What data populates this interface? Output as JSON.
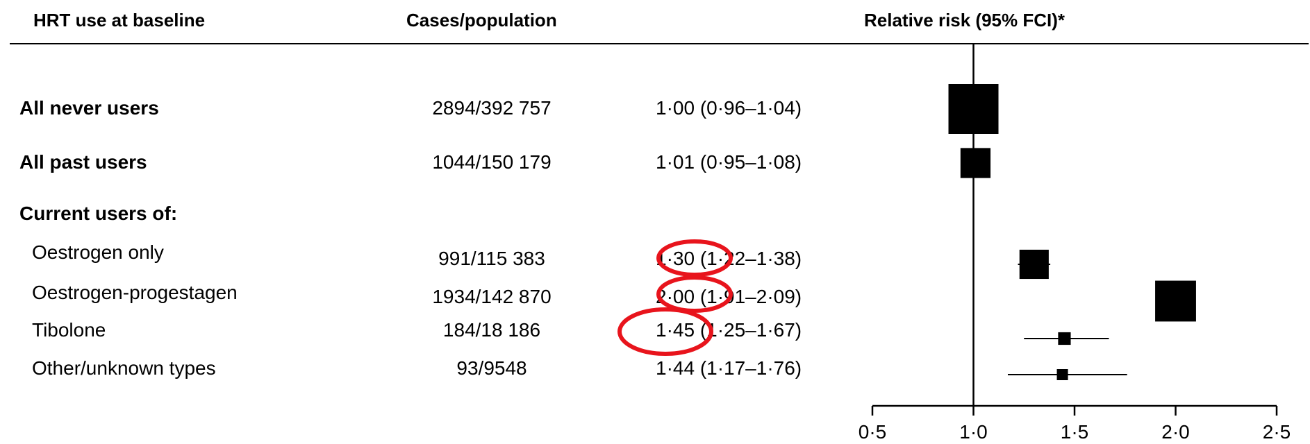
{
  "header": {
    "col1": "HRT use at baseline",
    "col2": "Cases/population",
    "col3": "Relative risk (95% FCI)*"
  },
  "rows": [
    {
      "label": "All never users",
      "bold": true,
      "cases": "2894/392 757",
      "rr_text": "1·00 (0·96–1·04)"
    },
    {
      "label": "All past users",
      "bold": true,
      "cases": "1044/150 179",
      "rr_text": "1·01 (0·95–1·08)"
    },
    {
      "label": "Current users of:",
      "bold": true,
      "cases": "",
      "rr_text": ""
    },
    {
      "label": "Oestrogen only",
      "bold": false,
      "cases": "991/115 383",
      "rr_text": "1·30 (1·22–1·38)"
    },
    {
      "label": "Oestrogen-progestagen",
      "bold": false,
      "cases": "1934/142 870",
      "rr_text": "2·00 (1·91–2·09)"
    },
    {
      "label": "Tibolone",
      "bold": false,
      "cases": "184/18 186",
      "rr_text": "1·45 (1·25–1·67)"
    },
    {
      "label": "Other/unknown types",
      "bold": false,
      "cases": "93/9548",
      "rr_text": "1·44 (1·17–1·76)"
    }
  ],
  "chart_data": {
    "type": "scatter",
    "xlim": [
      0.5,
      2.5
    ],
    "xticks": [
      0.5,
      1.0,
      1.5,
      2.0,
      2.5
    ],
    "xtick_labels": [
      "0·5",
      "1·0",
      "1·5",
      "2·0",
      "2·5"
    ],
    "reference_line": 1.0,
    "points": [
      {
        "name": "All never users",
        "rr": 1.0,
        "lo": 0.96,
        "hi": 1.04,
        "weight": 2894
      },
      {
        "name": "All past users",
        "rr": 1.01,
        "lo": 0.95,
        "hi": 1.08,
        "weight": 1044
      },
      {
        "name": "Oestrogen only",
        "rr": 1.3,
        "lo": 1.22,
        "hi": 1.38,
        "weight": 991
      },
      {
        "name": "Oestrogen-progestagen",
        "rr": 2.0,
        "lo": 1.91,
        "hi": 2.09,
        "weight": 1934
      },
      {
        "name": "Tibolone",
        "rr": 1.45,
        "lo": 1.25,
        "hi": 1.67,
        "weight": 184
      },
      {
        "name": "Other/unknown types",
        "rr": 1.44,
        "lo": 1.17,
        "hi": 1.76,
        "weight": 93
      }
    ],
    "annotation_color": "#e8141c",
    "highlighted_rows": [
      "Oestrogen only",
      "Oestrogen-progestagen",
      "Tibolone"
    ]
  }
}
